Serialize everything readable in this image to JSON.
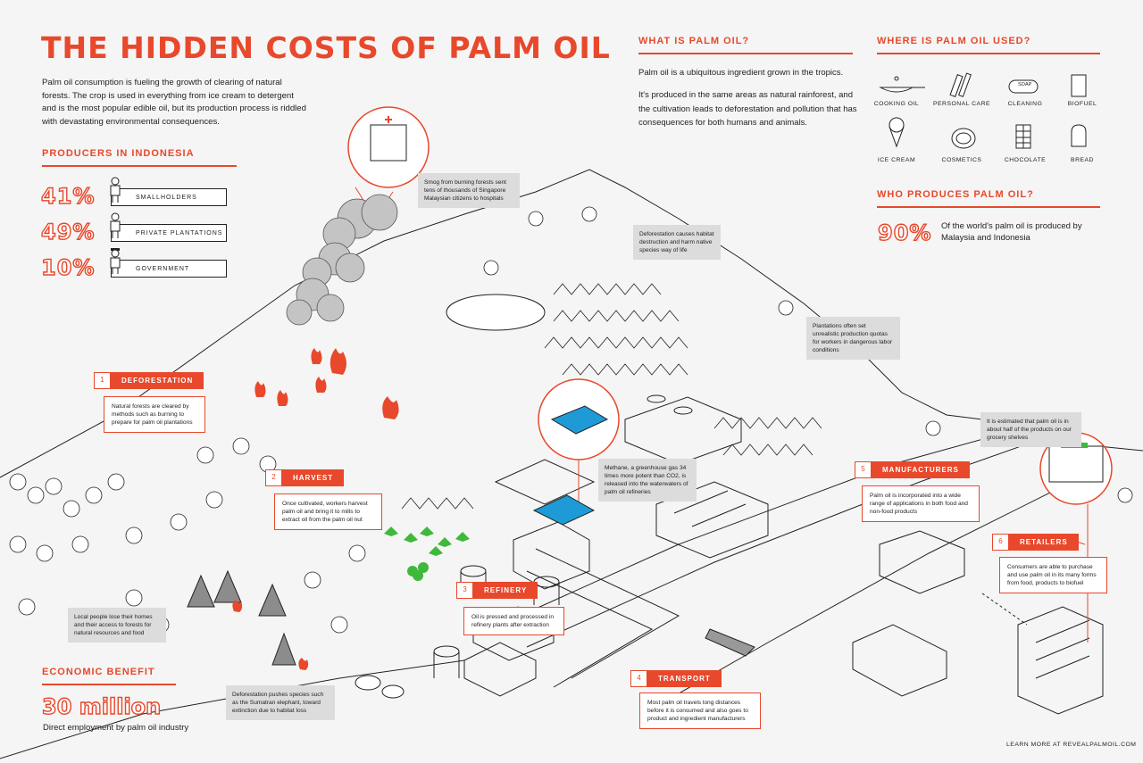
{
  "title": "THE HIDDEN COSTS OF PALM OIL",
  "intro": "Palm oil consumption is fueling the growth of clearing of natural forests. The crop is used in everything from ice cream to detergent and is the most popular edible oil, but its production process is riddled with devastating environmental consequences.",
  "producers": {
    "heading": "PRODUCERS IN INDONESIA",
    "rows": [
      {
        "percent": "41%",
        "label": "SMALLHOLDERS"
      },
      {
        "percent": "49%",
        "label": "PRIVATE PLANTATIONS"
      },
      {
        "percent": "10%",
        "label": "GOVERNMENT"
      }
    ]
  },
  "what": {
    "heading": "WHAT IS PALM OIL?",
    "p1": "Palm oil is a ubiquitous ingredient grown in the tropics.",
    "p2": "It's produced in the same areas as natural rainforest, and the cultivation leads to deforestation and pollution that has consequences for both humans and animals."
  },
  "where": {
    "heading": "WHERE IS PALM OIL USED?",
    "uses": [
      "COOKING OIL",
      "PERSONAL CARE",
      "CLEANING",
      "BIOFUEL",
      "ICE CREAM",
      "COSMETICS",
      "CHOCOLATE",
      "BREAD"
    ],
    "soap_label": "SOAP"
  },
  "who": {
    "heading": "WHO PRODUCES PALM OIL?",
    "percent": "90%",
    "text": "Of the world's palm oil is produced by Malaysia and Indonesia"
  },
  "economic": {
    "heading": "ECONOMIC BENEFIT",
    "value": "30 million",
    "text": "Direct employment by palm oil industry"
  },
  "steps": [
    {
      "num": "1",
      "label": "DEFORESTATION",
      "text": "Natural forests are cleared by methods such as burning to prepare for palm oil plantations"
    },
    {
      "num": "2",
      "label": "HARVEST",
      "text": "Once cultivated, workers harvest palm oil and bring it to mills to extract oil from the palm oil nut"
    },
    {
      "num": "3",
      "label": "REFINERY",
      "text": "Oil is pressed and processed in refinery plants after extraction"
    },
    {
      "num": "4",
      "label": "TRANSPORT",
      "text": "Most palm oil travels long distances before it is consumed and also goes to product and ingredient manufacturers"
    },
    {
      "num": "5",
      "label": "MANUFACTURERS",
      "text": "Palm oil is incorporated into a wide range of applications in both food and non-food products"
    },
    {
      "num": "6",
      "label": "RETAILERS",
      "text": "Consumers are able to purchase and use palm oil in its many forms from food, products to biofuel"
    }
  ],
  "notes": {
    "smog": "Smog from burning forests sent tens of thousands of Singapore Malaysian citizens to hospitals",
    "habitat": "Deforestation causes habitat destruction and harm native species way of life",
    "quotas": "Plantations often set unrealistic production quotas for workers in dangerous labor conditions",
    "methane": "Methane, a greenhouse gas 34 times more potent than CO2, is released into the waterwaters of palm oil refineries",
    "grocery": "It is estimated that palm oil is in about half of the products on our grocery shelves",
    "locals": "Local people lose their homes and their access to forests for natural resources and food",
    "species": "Deforestation pushes species such as the Sumatran elephant, toward extinction due to habitat loss"
  },
  "footer": "LEARN MORE AT REVEALPALMOIL.COM",
  "colors": {
    "accent": "#e8482b",
    "green": "#3fb93a",
    "water": "#1e9bd7",
    "gray": "#b8b8b8"
  }
}
